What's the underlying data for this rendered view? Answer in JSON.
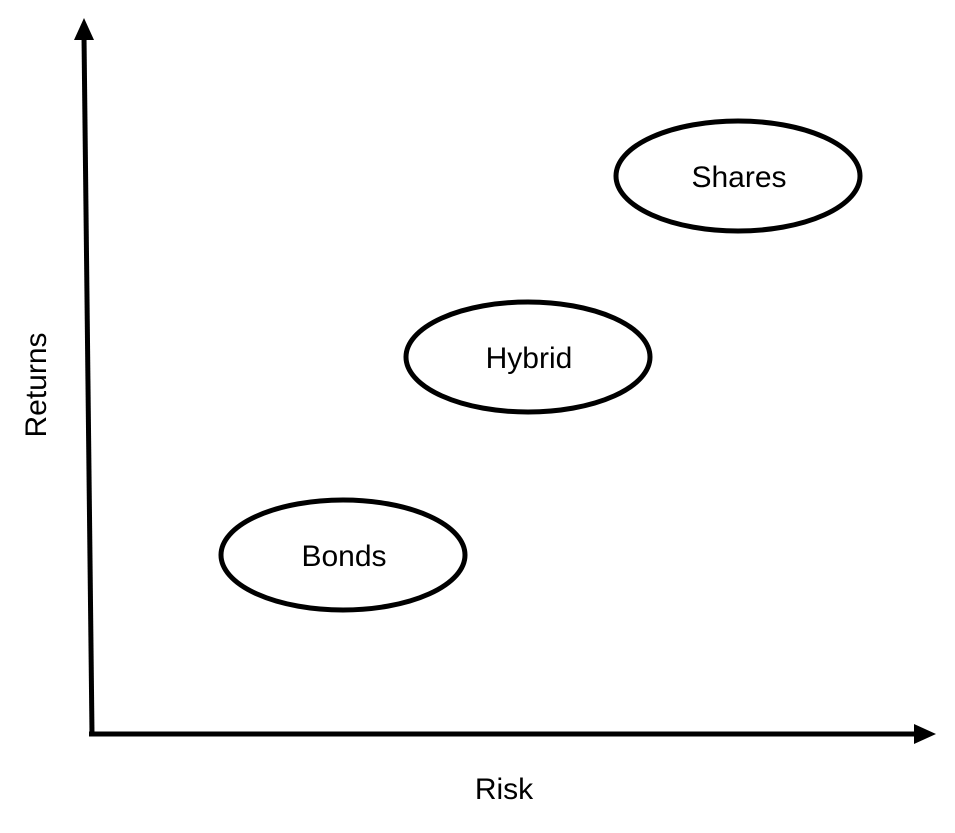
{
  "axes": {
    "x_label": "Risk",
    "y_label": "Returns"
  },
  "categories": [
    {
      "label": "Bonds"
    },
    {
      "label": "Hybrid"
    },
    {
      "label": "Shares"
    }
  ],
  "colors": {
    "stroke": "#000000",
    "background": "#ffffff"
  }
}
